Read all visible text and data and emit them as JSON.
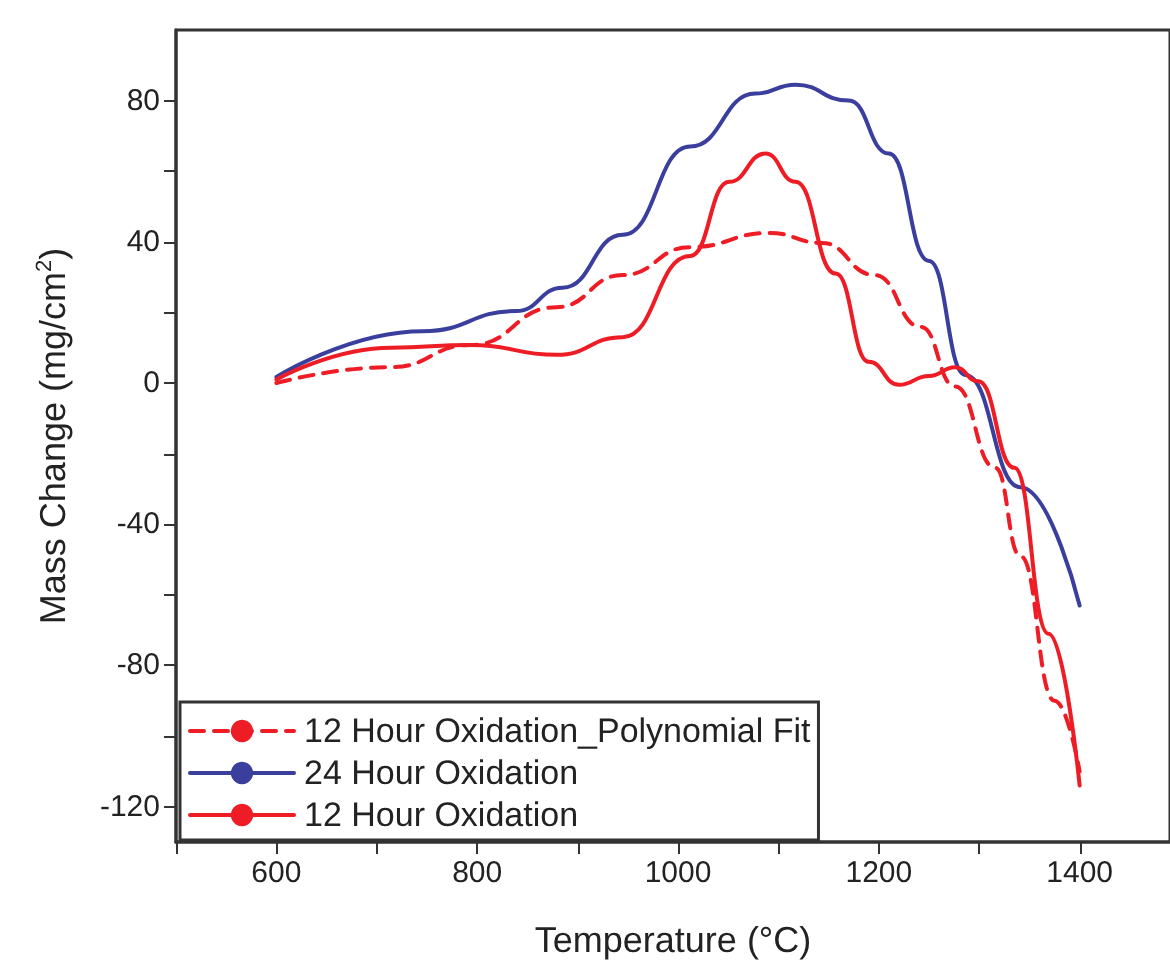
{
  "chart_data": {
    "type": "line",
    "xlabel": "Temperature (°C)",
    "ylabel": "Mass Change (mg/cm$^{2}$)",
    "xlim": [
      500,
      1490
    ],
    "ylim": [
      -130,
      100
    ],
    "xticks": [
      {
        "value": 500,
        "label": null
      },
      600,
      {
        "value": 700,
        "label": null
      },
      800,
      {
        "value": 900,
        "label": null
      },
      1000,
      {
        "value": 1100,
        "label": null
      },
      1200,
      {
        "value": 1300,
        "label": null
      },
      1400
    ],
    "yticks": [
      -120,
      {
        "value": -100,
        "label": null
      },
      -80,
      {
        "value": -60,
        "label": null
      },
      -40,
      {
        "value": -20,
        "label": null
      },
      0,
      {
        "value": 20,
        "label": null
      },
      40,
      {
        "value": 60,
        "label": null
      },
      80
    ],
    "grid": false,
    "legend": "bottom left",
    "marker": "none",
    "series": [
      {
        "name": "12 Hour Oxidation_Polynomial Fit",
        "color": "#ee1c25",
        "line_style": "dashed",
        "x": [
          600,
          714,
          794,
          879,
          945,
          1012,
          1091,
          1143,
          1196,
          1242,
          1276,
          1316,
          1341,
          1375,
          1400
        ],
        "values": [
          0,
          4.5,
          10.8,
          21.5,
          30.6,
          38.5,
          42.5,
          39.7,
          30.6,
          15.9,
          -1,
          -24,
          -49,
          -90,
          -110
        ]
      },
      {
        "name": "24 Hour Oxidation",
        "color": "#3a3f9e",
        "line_style": "solid",
        "x": [
          600,
          746,
          839,
          885,
          945,
          1012,
          1077,
          1117,
          1170,
          1210,
          1250,
          1286,
          1341,
          1400
        ],
        "values": [
          1.7,
          14.7,
          20.4,
          27,
          42,
          67,
          82,
          84.5,
          80,
          65,
          34.6,
          2.3,
          -29.5,
          -63
        ]
      },
      {
        "name": "12 Hour Oxidation",
        "color": "#ee1c25",
        "line_style": "solid",
        "x": [
          600,
          714,
          794,
          879,
          945,
          1012,
          1051,
          1087,
          1117,
          1157,
          1190,
          1220,
          1250,
          1276,
          1299,
          1335,
          1369,
          1400
        ],
        "values": [
          1,
          10,
          10.8,
          8,
          13,
          36,
          57,
          65,
          57,
          31,
          6,
          -0.5,
          2,
          4.5,
          0.5,
          -24,
          -71,
          -114
        ]
      }
    ]
  }
}
